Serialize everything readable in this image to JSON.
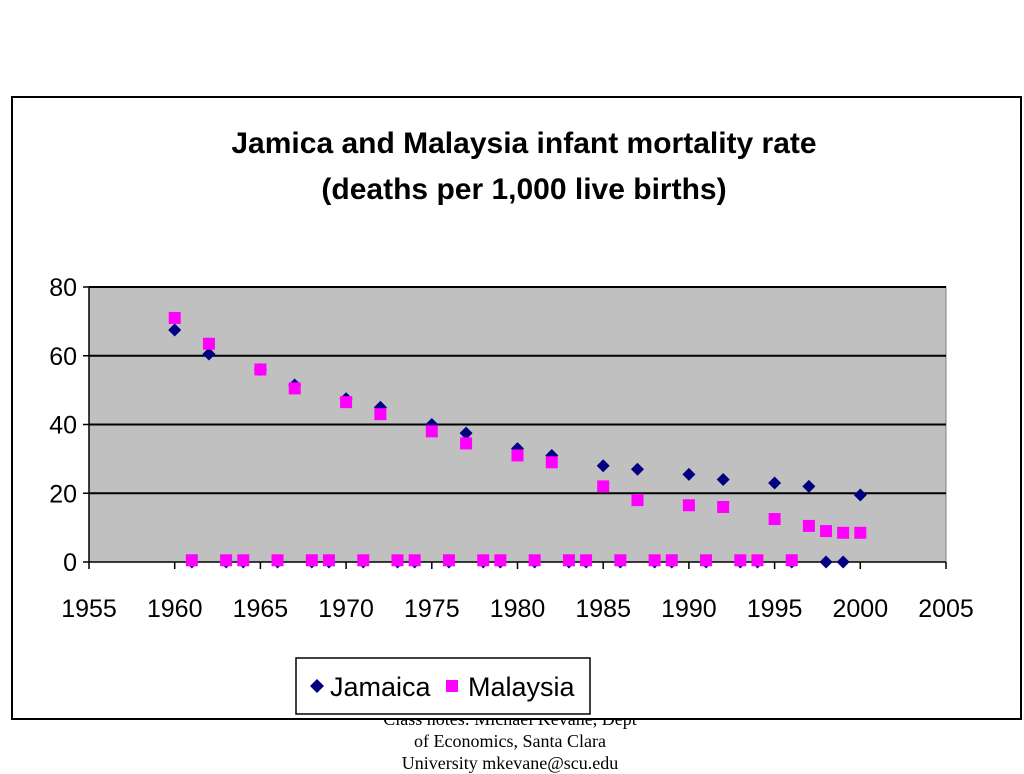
{
  "footer": {
    "line1": "Class notes: Michael Kevane, Dept",
    "line2": "of Economics, Santa Clara",
    "line3": "University mkevane@scu.edu"
  },
  "chart_data": {
    "type": "scatter",
    "title": "Jamica and Malaysia infant mortality rate",
    "subtitle": "(deaths per 1,000 live births)",
    "xlabel": "",
    "ylabel": "",
    "xlim": [
      1955,
      2005
    ],
    "ylim": [
      0,
      80
    ],
    "xticks": [
      1955,
      1960,
      1965,
      1970,
      1975,
      1980,
      1985,
      1990,
      1995,
      2000,
      2005
    ],
    "yticks": [
      0,
      20,
      40,
      60,
      80
    ],
    "grid": "horizontal",
    "legend": "bottom",
    "colors": {
      "plot_background": "#c0c0c0",
      "jamaica": "#000080",
      "malaysia": "#ff00ff"
    },
    "series": [
      {
        "name": "Jamaica",
        "marker": "diamond",
        "x": [
          1960,
          1961,
          1962,
          1963,
          1964,
          1965,
          1966,
          1967,
          1968,
          1969,
          1970,
          1971,
          1972,
          1973,
          1974,
          1975,
          1976,
          1977,
          1978,
          1979,
          1980,
          1981,
          1982,
          1983,
          1984,
          1985,
          1986,
          1987,
          1988,
          1989,
          1990,
          1991,
          1992,
          1993,
          1994,
          1995,
          1996,
          1997,
          1998,
          1999,
          2000
        ],
        "y": [
          67.5,
          0,
          60.5,
          0,
          0,
          56,
          0,
          51.5,
          0,
          0,
          47.5,
          0,
          45,
          0,
          0,
          40,
          0,
          37.5,
          0,
          0,
          33,
          0,
          31,
          0,
          0,
          28,
          0,
          27,
          0,
          0,
          25.5,
          0,
          24,
          0,
          0,
          23,
          0,
          22,
          0,
          0,
          19.5
        ]
      },
      {
        "name": "Malaysia",
        "marker": "square",
        "x": [
          1960,
          1961,
          1962,
          1963,
          1964,
          1965,
          1966,
          1967,
          1968,
          1969,
          1970,
          1971,
          1972,
          1973,
          1974,
          1975,
          1976,
          1977,
          1978,
          1979,
          1980,
          1981,
          1982,
          1983,
          1984,
          1985,
          1986,
          1987,
          1988,
          1989,
          1990,
          1991,
          1992,
          1993,
          1994,
          1995,
          1996,
          1997,
          1998,
          1999,
          2000
        ],
        "y": [
          71,
          0.5,
          63.5,
          0.5,
          0.5,
          56,
          0.5,
          50.5,
          0.5,
          0.5,
          46.5,
          0.5,
          43,
          0.5,
          0.5,
          38,
          0.5,
          34.5,
          0.5,
          0.5,
          31,
          0.5,
          29,
          0.5,
          0.5,
          22,
          0.5,
          18,
          0.5,
          0.5,
          16.5,
          0.5,
          16,
          0.5,
          0.5,
          12.5,
          0.5,
          10.5,
          9,
          8.5,
          8.5
        ]
      }
    ]
  }
}
